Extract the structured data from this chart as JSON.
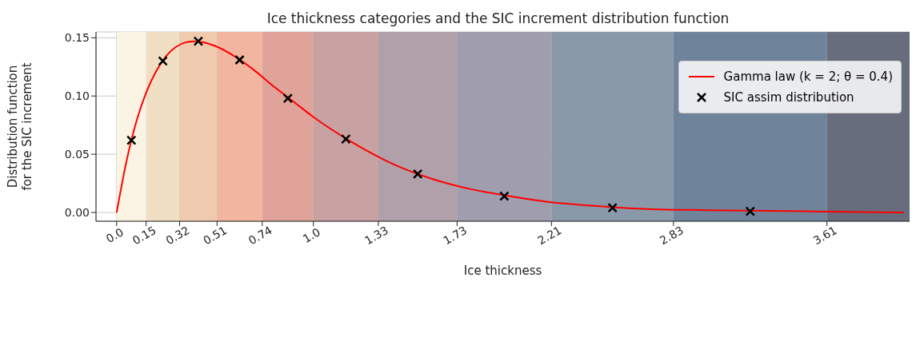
{
  "chart_data": {
    "type": "line",
    "title": "Ice thickness categories and the SIC increment distribution function",
    "xlabel": "Ice thickness",
    "ylabel": "Distribution function\nfor the SIC increment",
    "series": [
      {
        "name": "Gamma law (k = 2; θ = 0.4)",
        "color": "#ff0000",
        "x": [
          0,
          0.05,
          0.1,
          0.15,
          0.2,
          0.25,
          0.3,
          0.35,
          0.4,
          0.5,
          0.6,
          0.7,
          0.8,
          0.9,
          1.0,
          1.2,
          1.4,
          1.6,
          1.8,
          2.0,
          2.2,
          2.4,
          2.7,
          3.0,
          3.5,
          4.0
        ],
        "values": [
          0,
          0.044,
          0.078,
          0.103,
          0.121,
          0.134,
          0.142,
          0.146,
          0.147,
          0.143,
          0.134,
          0.122,
          0.108,
          0.095,
          0.082,
          0.06,
          0.042,
          0.029,
          0.02,
          0.014,
          0.009,
          0.006,
          0.003,
          0.002,
          0.001,
          0.0
        ]
      },
      {
        "name": "SIC assim distribution",
        "type": "scatter",
        "color": "#000000",
        "marker": "cross",
        "x": [
          0.075,
          0.235,
          0.415,
          0.625,
          0.87,
          1.165,
          1.53,
          1.97,
          2.52,
          3.22
        ],
        "values": [
          0.062,
          0.13,
          0.147,
          0.131,
          0.098,
          0.063,
          0.033,
          0.014,
          0.004,
          0.001
        ]
      }
    ],
    "xlim": [
      -0.105,
      4.03
    ],
    "ylim": [
      -0.0075,
      0.155
    ],
    "xticks": [
      {
        "value": 0,
        "label": "0.0"
      },
      0.15,
      0.32,
      0.51,
      0.74,
      {
        "value": 1,
        "label": "1.0"
      },
      1.33,
      1.73,
      2.21,
      2.83,
      3.61
    ],
    "yticks": [
      {
        "value": 0,
        "label": "0.00"
      },
      {
        "value": 0.05,
        "label": "0.05"
      },
      {
        "value": 0.1,
        "label": "0.10"
      },
      {
        "value": 0.15,
        "label": "0.15"
      }
    ],
    "bands": [
      {
        "axis": "x",
        "from": 0,
        "to": 0.15,
        "color": "#fbf3e3"
      },
      {
        "axis": "x",
        "from": 0.15,
        "to": 0.32,
        "color": "#f1dfc3"
      },
      {
        "axis": "x",
        "from": 0.32,
        "to": 0.51,
        "color": "#efcaae"
      },
      {
        "axis": "x",
        "from": 0.51,
        "to": 0.74,
        "color": "#f2b6a0"
      },
      {
        "axis": "x",
        "from": 0.74,
        "to": 1.0,
        "color": "#e0a39a"
      },
      {
        "axis": "x",
        "from": 1.0,
        "to": 1.33,
        "color": "#c8a2a3"
      },
      {
        "axis": "x",
        "from": 1.33,
        "to": 1.73,
        "color": "#b0a0aa"
      },
      {
        "axis": "x",
        "from": 1.73,
        "to": 2.21,
        "color": "#a09dae"
      },
      {
        "axis": "x",
        "from": 2.21,
        "to": 2.83,
        "color": "#8a99aa"
      },
      {
        "axis": "x",
        "from": 2.83,
        "to": 3.61,
        "color": "#6f849b"
      },
      {
        "axis": "x",
        "from": 3.61,
        "to": 4.03,
        "color": "#676d7d"
      }
    ],
    "grid": true,
    "legend": "top right"
  }
}
